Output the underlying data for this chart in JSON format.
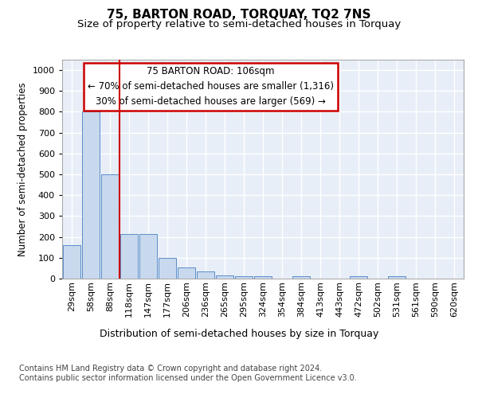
{
  "title": "75, BARTON ROAD, TORQUAY, TQ2 7NS",
  "subtitle": "Size of property relative to semi-detached houses in Torquay",
  "xlabel": "Distribution of semi-detached houses by size in Torquay",
  "ylabel": "Number of semi-detached properties",
  "footer_line1": "Contains HM Land Registry data © Crown copyright and database right 2024.",
  "footer_line2": "Contains public sector information licensed under the Open Government Licence v3.0.",
  "categories": [
    "29sqm",
    "58sqm",
    "88sqm",
    "118sqm",
    "147sqm",
    "177sqm",
    "206sqm",
    "236sqm",
    "265sqm",
    "295sqm",
    "324sqm",
    "354sqm",
    "384sqm",
    "413sqm",
    "443sqm",
    "472sqm",
    "502sqm",
    "531sqm",
    "561sqm",
    "590sqm",
    "620sqm"
  ],
  "values": [
    160,
    800,
    500,
    215,
    215,
    100,
    55,
    35,
    15,
    10,
    10,
    0,
    10,
    0,
    0,
    10,
    0,
    10,
    0,
    0,
    0
  ],
  "bar_color": "#c8d9ee",
  "bar_edge_color": "#5b8cc8",
  "red_line_x": 2.5,
  "annotation_text_line1": "75 BARTON ROAD: 106sqm",
  "annotation_text_line2": "← 70% of semi-detached houses are smaller (1,316)",
  "annotation_text_line3": "30% of semi-detached houses are larger (569) →",
  "annotation_box_facecolor": "#ffffff",
  "annotation_box_edgecolor": "#cc0000",
  "ylim": [
    0,
    1050
  ],
  "yticks": [
    0,
    100,
    200,
    300,
    400,
    500,
    600,
    700,
    800,
    900,
    1000
  ],
  "bg_color": "#e8eef7",
  "grid_color": "#ffffff",
  "title_fontsize": 11,
  "subtitle_fontsize": 9.5,
  "ylabel_fontsize": 8.5,
  "xlabel_fontsize": 9,
  "tick_fontsize": 8,
  "footer_fontsize": 7,
  "annotation_fontsize": 8.5
}
